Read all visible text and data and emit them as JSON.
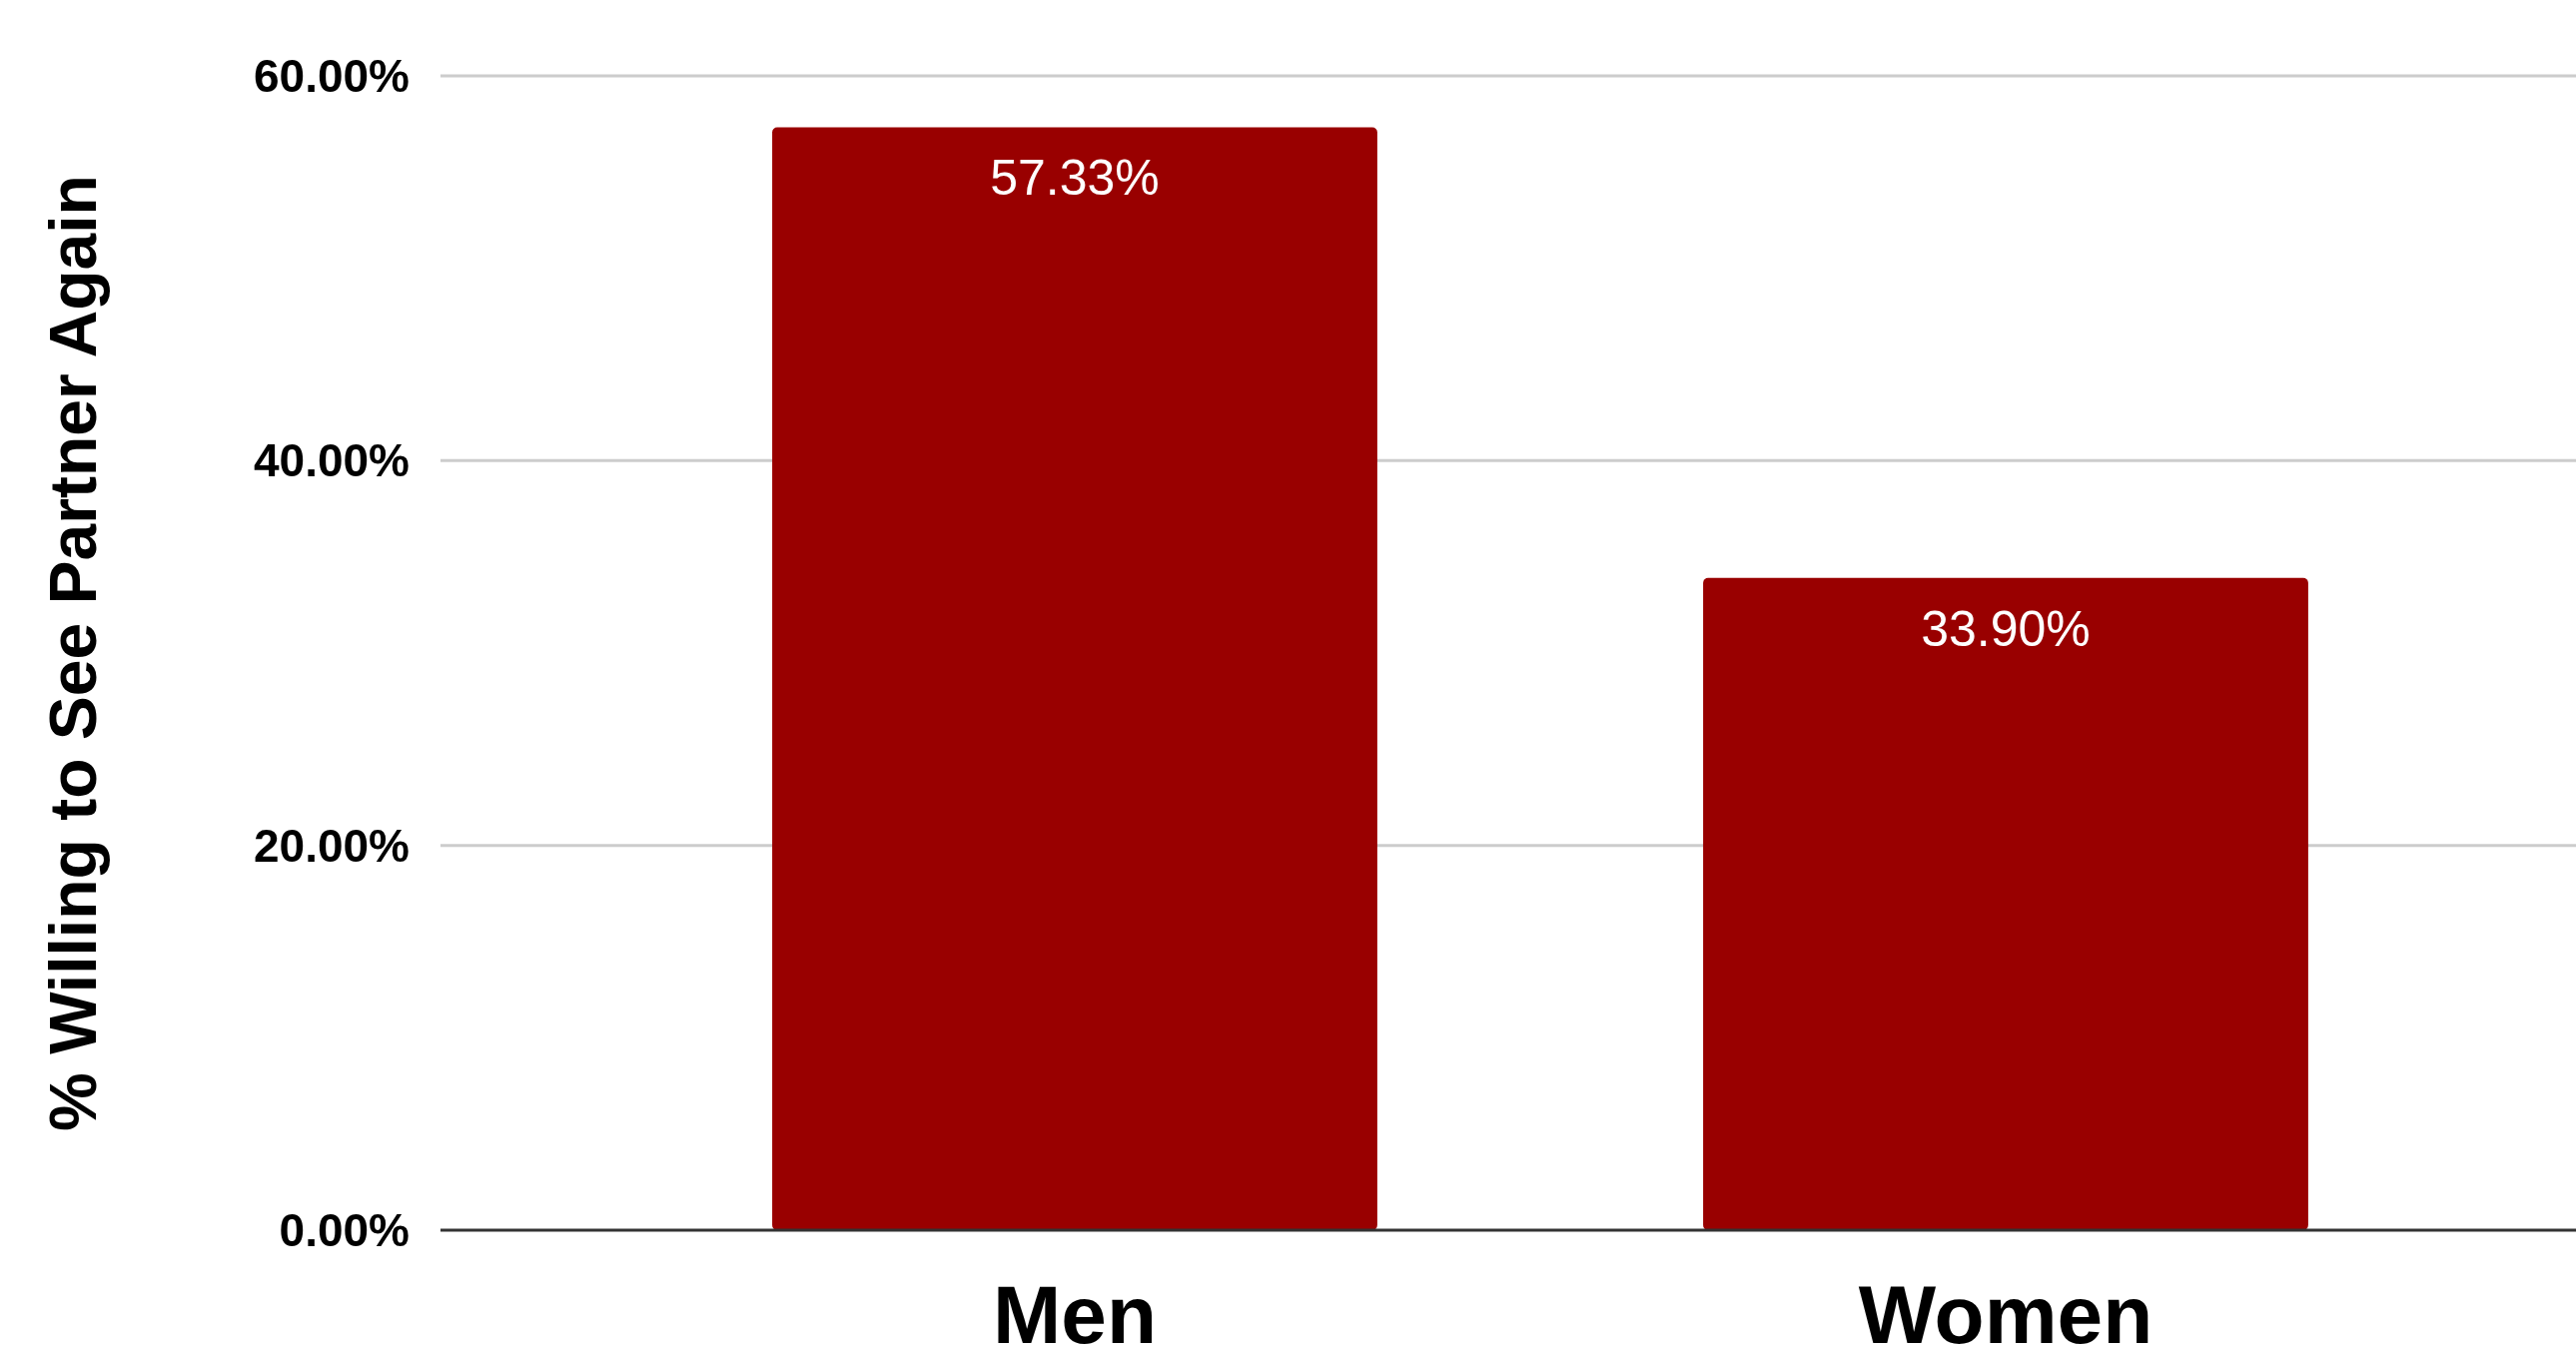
{
  "chart_data": {
    "type": "bar",
    "ylabel": "% Willing to See Partner Again",
    "categories": [
      "Men",
      "Women"
    ],
    "values": [
      57.33,
      33.9
    ],
    "value_labels": [
      "57.33%",
      "33.90%"
    ],
    "color": "#990000",
    "ylim": [
      0,
      60
    ],
    "yticks": [
      {
        "value": 0,
        "label": "0.00%"
      },
      {
        "value": 20,
        "label": "20.00%"
      },
      {
        "value": 40,
        "label": "40.00%"
      },
      {
        "value": 60,
        "label": "60.00%"
      }
    ],
    "grid": "y"
  }
}
